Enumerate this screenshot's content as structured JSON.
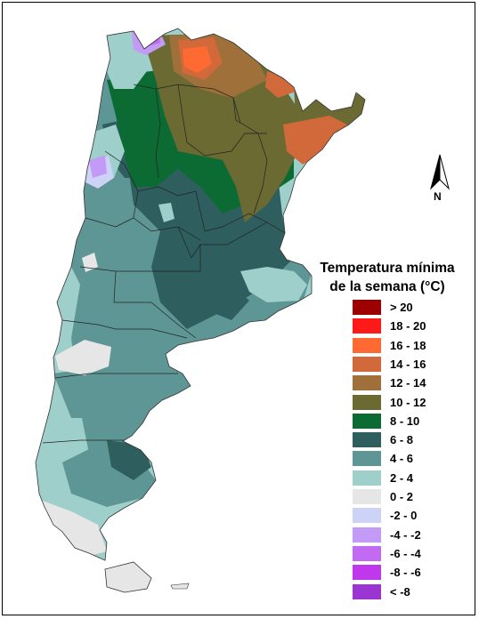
{
  "legend": {
    "title_line1": "Temperatura mínima",
    "title_line2": "de la semana (°C)",
    "items": [
      {
        "label": "> 20",
        "color": "#9c0000"
      },
      {
        "label": "18 - 20",
        "color": "#ff1a1a"
      },
      {
        "label": "16 - 18",
        "color": "#ff6a33"
      },
      {
        "label": "14 - 16",
        "color": "#d2693a"
      },
      {
        "label": "12 - 14",
        "color": "#a0703a"
      },
      {
        "label": "10 - 12",
        "color": "#6b6a33"
      },
      {
        "label": "8 - 10",
        "color": "#0b6b33"
      },
      {
        "label": "6 - 8",
        "color": "#2f5e5e"
      },
      {
        "label": "4 - 6",
        "color": "#5e9696"
      },
      {
        "label": "2 - 4",
        "color": "#9ecfcb"
      },
      {
        "label": "0 - 2",
        "color": "#e6e6e6"
      },
      {
        "label": "-2 - 0",
        "color": "#cdd2f7"
      },
      {
        "label": "-4 - -2",
        "color": "#c39af5"
      },
      {
        "label": "-6 - -4",
        "color": "#c36af2"
      },
      {
        "label": "-8 - -6",
        "color": "#c038ec"
      },
      {
        "label": "< -8",
        "color": "#9a34d2"
      }
    ]
  },
  "north_arrow": {
    "label": "N"
  }
}
